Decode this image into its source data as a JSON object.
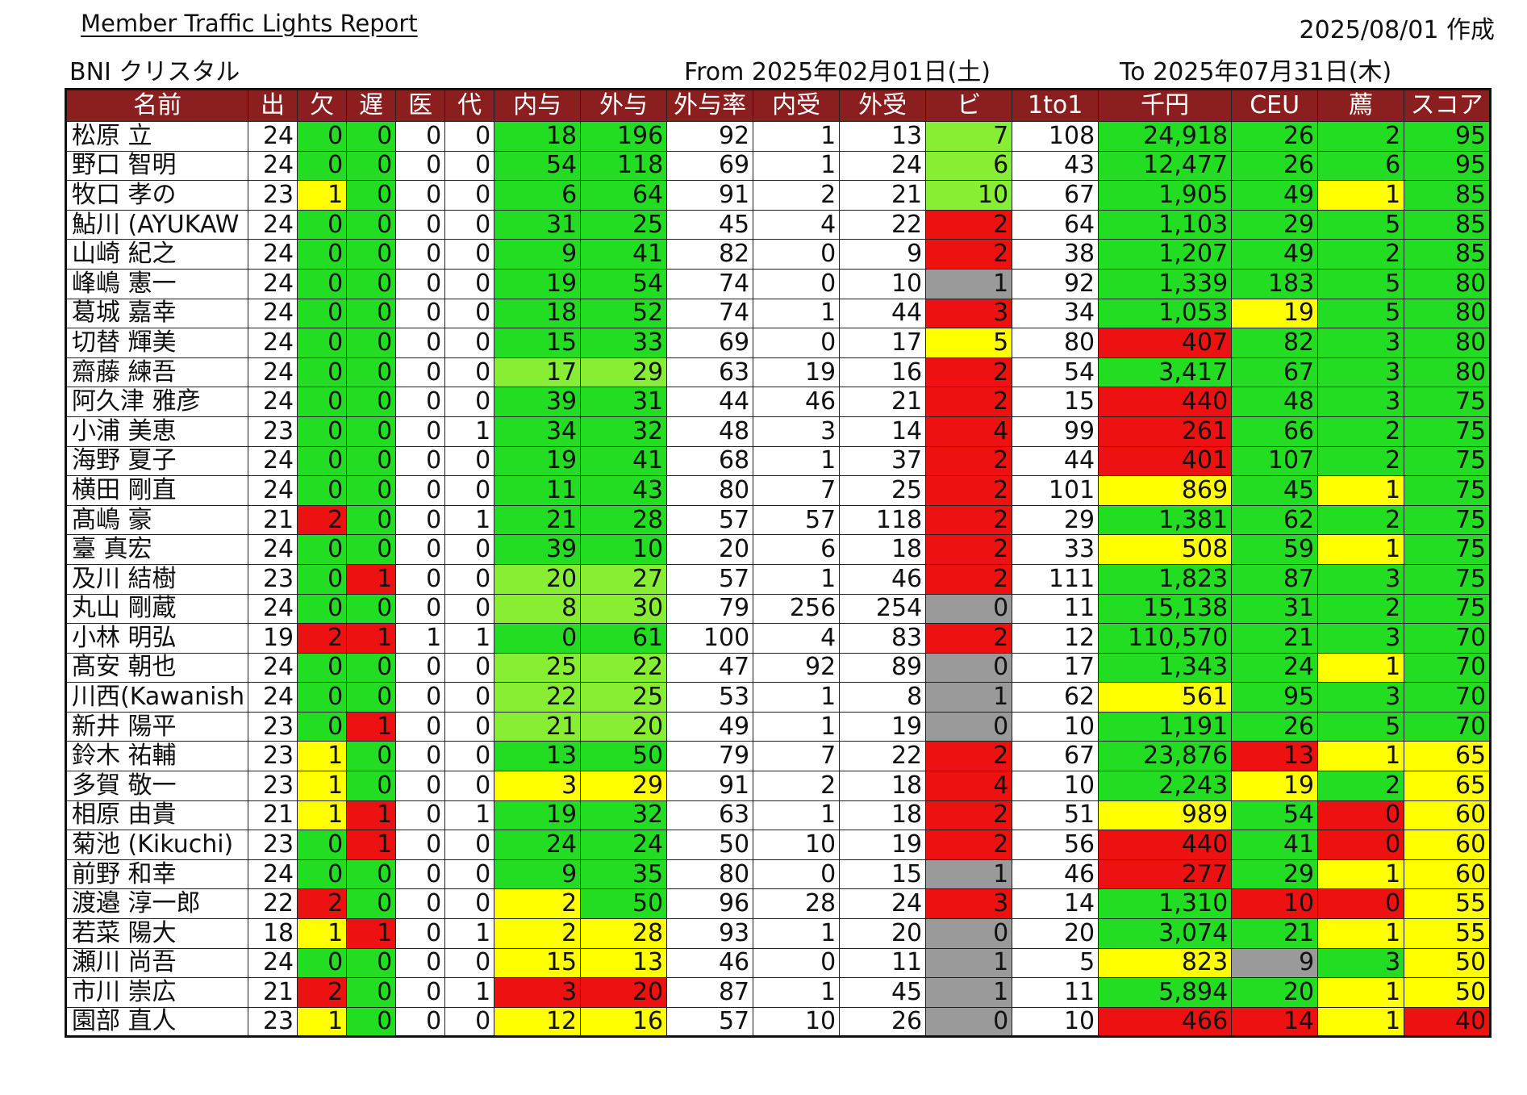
{
  "report": {
    "title": " Member Traffic Lights Report ",
    "created": "2025/08/01 作成",
    "group": "BNI クリスタル",
    "from": "From 2025年02月01日(土)",
    "to": "To  2025年07月31日(木)"
  },
  "colors": {
    "g": "#22dd22",
    "lg": "#88ee33",
    "y": "#ffff00",
    "r": "#ee1111",
    "gr": "#9a9a9a",
    "header": "#8b1e1e"
  },
  "table": {
    "headers": [
      "名前",
      "出",
      "欠",
      "遅",
      "医",
      "代",
      "内与",
      "外与",
      "外与率",
      "内受",
      "外受",
      "ビ",
      "1to1",
      "千円",
      "CEU",
      "薦",
      "スコア"
    ],
    "rows": [
      {
        "values": [
          "松原 立",
          "24",
          "0",
          "0",
          "0",
          "0",
          "18",
          "196",
          "92",
          "1",
          "13",
          "7",
          "108",
          "24,918",
          "26",
          "2",
          "95"
        ],
        "colors": [
          "",
          "",
          "g",
          "g",
          "",
          "",
          "g",
          "g",
          "",
          "",
          "",
          "lg",
          "",
          "g",
          "g",
          "g",
          "g"
        ]
      },
      {
        "values": [
          "野口 智明",
          "24",
          "0",
          "0",
          "0",
          "0",
          "54",
          "118",
          "69",
          "1",
          "24",
          "6",
          "43",
          "12,477",
          "26",
          "6",
          "95"
        ],
        "colors": [
          "",
          "",
          "g",
          "g",
          "",
          "",
          "g",
          "g",
          "",
          "",
          "",
          "lg",
          "",
          "g",
          "g",
          "g",
          "g"
        ]
      },
      {
        "values": [
          "牧口 孝の",
          "23",
          "1",
          "0",
          "0",
          "0",
          "6",
          "64",
          "91",
          "2",
          "21",
          "10",
          "67",
          "1,905",
          "49",
          "1",
          "85"
        ],
        "colors": [
          "",
          "",
          "y",
          "g",
          "",
          "",
          "g",
          "g",
          "",
          "",
          "",
          "lg",
          "",
          "g",
          "g",
          "y",
          "g"
        ]
      },
      {
        "values": [
          "鮎川 (AYUKAW",
          "24",
          "0",
          "0",
          "0",
          "0",
          "31",
          "25",
          "45",
          "4",
          "22",
          "2",
          "64",
          "1,103",
          "29",
          "5",
          "85"
        ],
        "colors": [
          "",
          "",
          "g",
          "g",
          "",
          "",
          "g",
          "g",
          "",
          "",
          "",
          "r",
          "",
          "g",
          "g",
          "g",
          "g"
        ]
      },
      {
        "values": [
          "山崎 紀之",
          "24",
          "0",
          "0",
          "0",
          "0",
          "9",
          "41",
          "82",
          "0",
          "9",
          "2",
          "38",
          "1,207",
          "49",
          "2",
          "85"
        ],
        "colors": [
          "",
          "",
          "g",
          "g",
          "",
          "",
          "g",
          "g",
          "",
          "",
          "",
          "r",
          "",
          "g",
          "g",
          "g",
          "g"
        ]
      },
      {
        "values": [
          "峰嶋 憲一",
          "24",
          "0",
          "0",
          "0",
          "0",
          "19",
          "54",
          "74",
          "0",
          "10",
          "1",
          "92",
          "1,339",
          "183",
          "5",
          "80"
        ],
        "colors": [
          "",
          "",
          "g",
          "g",
          "",
          "",
          "g",
          "g",
          "",
          "",
          "",
          "gr",
          "",
          "g",
          "g",
          "g",
          "g"
        ]
      },
      {
        "values": [
          "葛城 嘉幸",
          "24",
          "0",
          "0",
          "0",
          "0",
          "18",
          "52",
          "74",
          "1",
          "44",
          "3",
          "34",
          "1,053",
          "19",
          "5",
          "80"
        ],
        "colors": [
          "",
          "",
          "g",
          "g",
          "",
          "",
          "g",
          "g",
          "",
          "",
          "",
          "r",
          "",
          "g",
          "y",
          "g",
          "g"
        ]
      },
      {
        "values": [
          "切替 輝美",
          "24",
          "0",
          "0",
          "0",
          "0",
          "15",
          "33",
          "69",
          "0",
          "17",
          "5",
          "80",
          "407",
          "82",
          "3",
          "80"
        ],
        "colors": [
          "",
          "",
          "g",
          "g",
          "",
          "",
          "g",
          "g",
          "",
          "",
          "",
          "y",
          "",
          "r",
          "g",
          "g",
          "g"
        ]
      },
      {
        "values": [
          "齋藤 練吾",
          "24",
          "0",
          "0",
          "0",
          "0",
          "17",
          "29",
          "63",
          "19",
          "16",
          "2",
          "54",
          "3,417",
          "67",
          "3",
          "80"
        ],
        "colors": [
          "",
          "",
          "g",
          "g",
          "",
          "",
          "lg",
          "lg",
          "",
          "",
          "",
          "r",
          "",
          "g",
          "g",
          "g",
          "g"
        ]
      },
      {
        "values": [
          "阿久津 雅彦",
          "24",
          "0",
          "0",
          "0",
          "0",
          "39",
          "31",
          "44",
          "46",
          "21",
          "2",
          "15",
          "440",
          "48",
          "3",
          "75"
        ],
        "colors": [
          "",
          "",
          "g",
          "g",
          "",
          "",
          "g",
          "g",
          "",
          "",
          "",
          "r",
          "",
          "r",
          "g",
          "g",
          "g"
        ]
      },
      {
        "values": [
          "小浦 美恵",
          "23",
          "0",
          "0",
          "0",
          "1",
          "34",
          "32",
          "48",
          "3",
          "14",
          "4",
          "99",
          "261",
          "66",
          "2",
          "75"
        ],
        "colors": [
          "",
          "",
          "g",
          "g",
          "",
          "",
          "g",
          "g",
          "",
          "",
          "",
          "r",
          "",
          "r",
          "g",
          "g",
          "g"
        ]
      },
      {
        "values": [
          "海野 夏子",
          "24",
          "0",
          "0",
          "0",
          "0",
          "19",
          "41",
          "68",
          "1",
          "37",
          "2",
          "44",
          "401",
          "107",
          "2",
          "75"
        ],
        "colors": [
          "",
          "",
          "g",
          "g",
          "",
          "",
          "g",
          "g",
          "",
          "",
          "",
          "r",
          "",
          "r",
          "g",
          "g",
          "g"
        ]
      },
      {
        "values": [
          "横田 剛直",
          "24",
          "0",
          "0",
          "0",
          "0",
          "11",
          "43",
          "80",
          "7",
          "25",
          "2",
          "101",
          "869",
          "45",
          "1",
          "75"
        ],
        "colors": [
          "",
          "",
          "g",
          "g",
          "",
          "",
          "g",
          "g",
          "",
          "",
          "",
          "r",
          "",
          "y",
          "g",
          "y",
          "g"
        ]
      },
      {
        "values": [
          "髙嶋 豪",
          "21",
          "2",
          "0",
          "0",
          "1",
          "21",
          "28",
          "57",
          "57",
          "118",
          "2",
          "29",
          "1,381",
          "62",
          "2",
          "75"
        ],
        "colors": [
          "",
          "",
          "r",
          "g",
          "",
          "",
          "g",
          "g",
          "",
          "",
          "",
          "r",
          "",
          "g",
          "g",
          "g",
          "g"
        ]
      },
      {
        "values": [
          "臺 真宏",
          "24",
          "0",
          "0",
          "0",
          "0",
          "39",
          "10",
          "20",
          "6",
          "18",
          "2",
          "33",
          "508",
          "59",
          "1",
          "75"
        ],
        "colors": [
          "",
          "",
          "g",
          "g",
          "",
          "",
          "g",
          "g",
          "",
          "",
          "",
          "r",
          "",
          "y",
          "g",
          "y",
          "g"
        ]
      },
      {
        "values": [
          "及川 結樹",
          "23",
          "0",
          "1",
          "0",
          "0",
          "20",
          "27",
          "57",
          "1",
          "46",
          "2",
          "111",
          "1,823",
          "87",
          "3",
          "75"
        ],
        "colors": [
          "",
          "",
          "g",
          "r",
          "",
          "",
          "lg",
          "lg",
          "",
          "",
          "",
          "r",
          "",
          "g",
          "g",
          "g",
          "g"
        ]
      },
      {
        "values": [
          "丸山 剛蔵",
          "24",
          "0",
          "0",
          "0",
          "0",
          "8",
          "30",
          "79",
          "256",
          "254",
          "0",
          "11",
          "15,138",
          "31",
          "2",
          "75"
        ],
        "colors": [
          "",
          "",
          "g",
          "g",
          "",
          "",
          "lg",
          "lg",
          "",
          "",
          "",
          "gr",
          "",
          "g",
          "g",
          "g",
          "g"
        ]
      },
      {
        "values": [
          "小林 明弘",
          "19",
          "2",
          "1",
          "1",
          "1",
          "0",
          "61",
          "100",
          "4",
          "83",
          "2",
          "12",
          "110,570",
          "21",
          "3",
          "70"
        ],
        "colors": [
          "",
          "",
          "r",
          "r",
          "",
          "",
          "g",
          "g",
          "",
          "",
          "",
          "r",
          "",
          "g",
          "g",
          "g",
          "g"
        ]
      },
      {
        "values": [
          "髙安 朝也",
          "24",
          "0",
          "0",
          "0",
          "0",
          "25",
          "22",
          "47",
          "92",
          "89",
          "0",
          "17",
          "1,343",
          "24",
          "1",
          "70"
        ],
        "colors": [
          "",
          "",
          "g",
          "g",
          "",
          "",
          "lg",
          "lg",
          "",
          "",
          "",
          "gr",
          "",
          "g",
          "g",
          "y",
          "g"
        ]
      },
      {
        "values": [
          "川西(Kawanish",
          "24",
          "0",
          "0",
          "0",
          "0",
          "22",
          "25",
          "53",
          "1",
          "8",
          "1",
          "62",
          "561",
          "95",
          "3",
          "70"
        ],
        "colors": [
          "",
          "",
          "g",
          "g",
          "",
          "",
          "lg",
          "lg",
          "",
          "",
          "",
          "gr",
          "",
          "y",
          "g",
          "g",
          "g"
        ]
      },
      {
        "values": [
          "新井 陽平",
          "23",
          "0",
          "1",
          "0",
          "0",
          "21",
          "20",
          "49",
          "1",
          "19",
          "0",
          "10",
          "1,191",
          "26",
          "5",
          "70"
        ],
        "colors": [
          "",
          "",
          "g",
          "r",
          "",
          "",
          "lg",
          "lg",
          "",
          "",
          "",
          "gr",
          "",
          "g",
          "g",
          "g",
          "g"
        ]
      },
      {
        "values": [
          "鈴木 祐輔",
          "23",
          "1",
          "0",
          "0",
          "0",
          "13",
          "50",
          "79",
          "7",
          "22",
          "2",
          "67",
          "23,876",
          "13",
          "1",
          "65"
        ],
        "colors": [
          "",
          "",
          "y",
          "g",
          "",
          "",
          "g",
          "g",
          "",
          "",
          "",
          "r",
          "",
          "g",
          "r",
          "y",
          "y"
        ]
      },
      {
        "values": [
          "多賀 敬一",
          "23",
          "1",
          "0",
          "0",
          "0",
          "3",
          "29",
          "91",
          "2",
          "18",
          "4",
          "10",
          "2,243",
          "19",
          "2",
          "65"
        ],
        "colors": [
          "",
          "",
          "y",
          "g",
          "",
          "",
          "y",
          "y",
          "",
          "",
          "",
          "r",
          "",
          "g",
          "y",
          "g",
          "y"
        ]
      },
      {
        "values": [
          "相原 由貴",
          "21",
          "1",
          "1",
          "0",
          "1",
          "19",
          "32",
          "63",
          "1",
          "18",
          "2",
          "51",
          "989",
          "54",
          "0",
          "60"
        ],
        "colors": [
          "",
          "",
          "y",
          "r",
          "",
          "",
          "g",
          "g",
          "",
          "",
          "",
          "r",
          "",
          "y",
          "g",
          "r",
          "y"
        ]
      },
      {
        "values": [
          "菊池 (Kikuchi)",
          "23",
          "0",
          "1",
          "0",
          "0",
          "24",
          "24",
          "50",
          "10",
          "19",
          "2",
          "56",
          "440",
          "41",
          "0",
          "60"
        ],
        "colors": [
          "",
          "",
          "g",
          "r",
          "",
          "",
          "g",
          "g",
          "",
          "",
          "",
          "r",
          "",
          "r",
          "g",
          "r",
          "y"
        ]
      },
      {
        "values": [
          "前野 和幸",
          "24",
          "0",
          "0",
          "0",
          "0",
          "9",
          "35",
          "80",
          "0",
          "15",
          "1",
          "46",
          "277",
          "29",
          "1",
          "60"
        ],
        "colors": [
          "",
          "",
          "g",
          "g",
          "",
          "",
          "g",
          "g",
          "",
          "",
          "",
          "gr",
          "",
          "r",
          "g",
          "y",
          "y"
        ]
      },
      {
        "values": [
          "渡邉 淳一郎",
          "22",
          "2",
          "0",
          "0",
          "0",
          "2",
          "50",
          "96",
          "28",
          "24",
          "3",
          "14",
          "1,310",
          "10",
          "0",
          "55"
        ],
        "colors": [
          "",
          "",
          "r",
          "g",
          "",
          "",
          "y",
          "g",
          "",
          "",
          "",
          "r",
          "",
          "g",
          "r",
          "r",
          "y"
        ]
      },
      {
        "values": [
          "若菜 陽大",
          "18",
          "1",
          "1",
          "0",
          "1",
          "2",
          "28",
          "93",
          "1",
          "20",
          "0",
          "20",
          "3,074",
          "21",
          "1",
          "55"
        ],
        "colors": [
          "",
          "",
          "y",
          "r",
          "",
          "",
          "y",
          "y",
          "",
          "",
          "",
          "gr",
          "",
          "g",
          "g",
          "y",
          "y"
        ]
      },
      {
        "values": [
          "瀬川 尚吾",
          "24",
          "0",
          "0",
          "0",
          "0",
          "15",
          "13",
          "46",
          "0",
          "11",
          "1",
          "5",
          "823",
          "9",
          "3",
          "50"
        ],
        "colors": [
          "",
          "",
          "g",
          "g",
          "",
          "",
          "y",
          "y",
          "",
          "",
          "",
          "gr",
          "",
          "y",
          "gr",
          "g",
          "y"
        ]
      },
      {
        "values": [
          "市川 崇広",
          "21",
          "2",
          "0",
          "0",
          "1",
          "3",
          "20",
          "87",
          "1",
          "45",
          "1",
          "11",
          "5,894",
          "20",
          "1",
          "50"
        ],
        "colors": [
          "",
          "",
          "r",
          "g",
          "",
          "",
          "r",
          "r",
          "",
          "",
          "",
          "gr",
          "",
          "g",
          "g",
          "y",
          "y"
        ]
      },
      {
        "values": [
          "園部 直人",
          "23",
          "1",
          "0",
          "0",
          "0",
          "12",
          "16",
          "57",
          "10",
          "26",
          "0",
          "10",
          "466",
          "14",
          "1",
          "40"
        ],
        "colors": [
          "",
          "",
          "y",
          "g",
          "",
          "",
          "y",
          "y",
          "",
          "",
          "",
          "gr",
          "",
          "r",
          "r",
          "y",
          "r"
        ]
      }
    ]
  }
}
